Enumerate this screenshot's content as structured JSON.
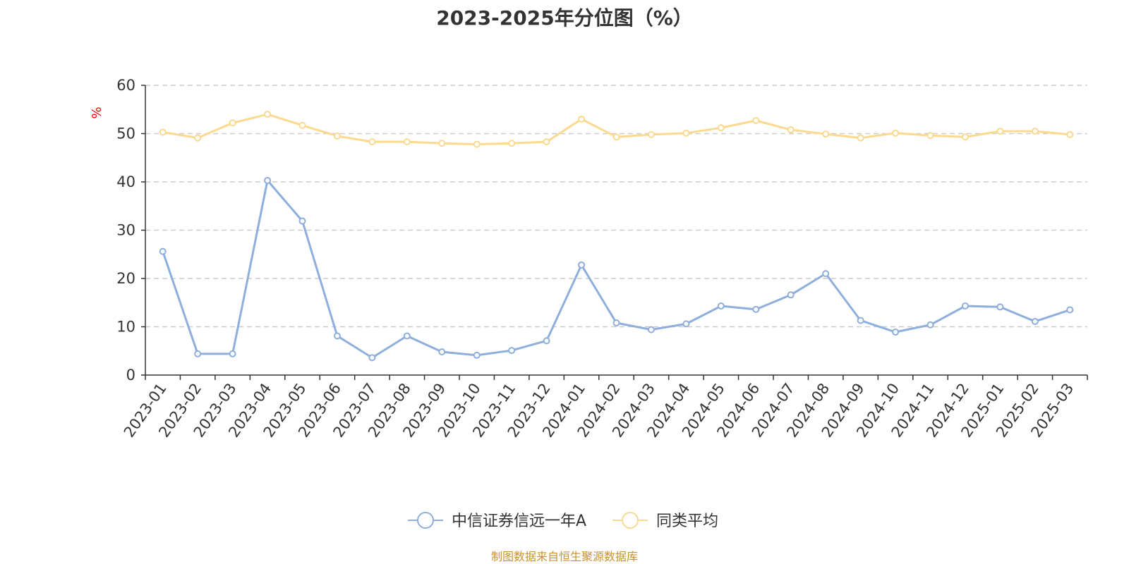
{
  "chart_data": {
    "type": "line",
    "title": "2023-2025年分位图（%）",
    "ylabel": "%",
    "xlabel": "",
    "ylim": [
      0,
      60
    ],
    "yticks": [
      0,
      10,
      20,
      30,
      40,
      50,
      60
    ],
    "grid": true,
    "legend_position": "bottom",
    "categories": [
      "2023-01",
      "2023-02",
      "2023-03",
      "2023-04",
      "2023-05",
      "2023-06",
      "2023-07",
      "2023-08",
      "2023-09",
      "2023-10",
      "2023-11",
      "2023-12",
      "2024-01",
      "2024-02",
      "2024-03",
      "2024-04",
      "2024-05",
      "2024-06",
      "2024-07",
      "2024-08",
      "2024-09",
      "2024-10",
      "2024-11",
      "2024-12",
      "2025-01",
      "2025-02",
      "2025-03"
    ],
    "series": [
      {
        "name": "中信证券信远一年A",
        "color": "#8eaedb",
        "values": [
          25.6,
          4.4,
          4.4,
          40.3,
          31.9,
          8.1,
          3.6,
          8.1,
          4.8,
          4.1,
          5.1,
          7.1,
          22.8,
          10.8,
          9.4,
          10.6,
          14.3,
          13.6,
          16.6,
          21.0,
          11.3,
          8.9,
          10.4,
          14.3,
          14.1,
          11.1,
          13.5
        ]
      },
      {
        "name": "同类平均",
        "color": "#fbd98f",
        "values": [
          50.3,
          49.1,
          52.2,
          54.0,
          51.7,
          49.5,
          48.3,
          48.3,
          48.0,
          47.8,
          48.0,
          48.3,
          53.0,
          49.3,
          49.8,
          50.1,
          51.2,
          52.7,
          50.8,
          49.9,
          49.1,
          50.1,
          49.6,
          49.3,
          50.5,
          50.5,
          49.8
        ]
      }
    ]
  },
  "source_note": "制图数据来自恒生聚源数据库"
}
